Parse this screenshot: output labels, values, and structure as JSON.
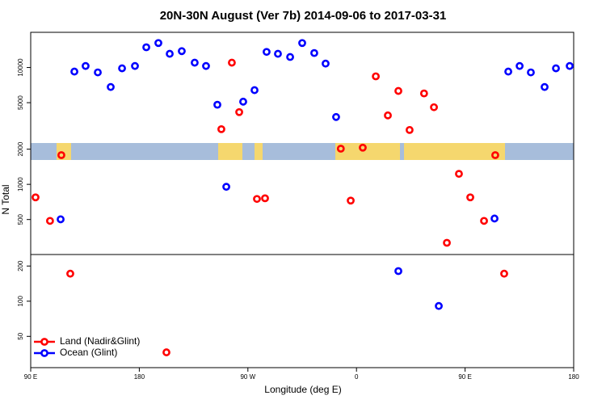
{
  "chart_data": {
    "type": "scatter",
    "title": "20N-30N August (Ver 7b)   2014-09-06 to 2017-03-31",
    "x_label": "Longitude (deg E)",
    "y_label": "N Total",
    "xlim": [
      90,
      540
    ],
    "xticks": [
      {
        "value": 90,
        "label": "90 E"
      },
      180,
      {
        "value": 270,
        "label": "90 W"
      },
      {
        "value": 360,
        "label": "0"
      },
      {
        "value": 450,
        "label": "90 E"
      },
      {
        "value": 540,
        "label": "180"
      }
    ],
    "ylim": [
      27,
      20000
    ],
    "log_y": true,
    "yticks": [
      50,
      100,
      200,
      500,
      1000,
      2000,
      5000,
      10000
    ],
    "legend": "bottom left",
    "series": [
      {
        "name": "Land (Nadir&Glint)",
        "color": "#ff0000",
        "x": [
          94,
          106,
          115.4,
          122.8,
          202.5,
          248,
          256.7,
          262.8,
          277.5,
          284.2,
          347,
          355.2,
          365.2,
          376,
          386,
          394.7,
          404,
          416,
          424.2,
          434.9,
          444.9,
          454.3,
          465.7,
          475,
          482.4
        ],
        "values": [
          774,
          487,
          1778,
          172,
          36.5,
          2966,
          11000,
          4150,
          750,
          760,
          2020,
          726,
          2060,
          8400,
          3890,
          6300,
          2920,
          6000,
          4570,
          316,
          1230,
          774,
          487,
          1778,
          172
        ]
      },
      {
        "name": "Ocean (Glint)",
        "color": "#0000ff",
        "x": [
          114.8,
          126.2,
          135.5,
          145.6,
          156.3,
          165.7,
          176.4,
          185.8,
          195.8,
          205.2,
          215.2,
          225.9,
          235.3,
          244.7,
          252.1,
          266.1,
          275.5,
          285.5,
          294.9,
          305,
          315,
          325,
          334.4,
          343.1,
          394.7,
          428.2,
          474.4,
          485.8,
          495.2,
          504.5,
          515.9,
          525.3,
          536.7
        ],
        "values": [
          502,
          9230,
          10300,
          9080,
          6810,
          9840,
          10300,
          14900,
          16200,
          13100,
          13800,
          11000,
          10300,
          4800,
          953,
          5100,
          6400,
          13600,
          13100,
          12300,
          16200,
          13300,
          10800,
          3770,
          181,
          91,
          510,
          9230,
          10300,
          9080,
          6810,
          9840,
          10300
        ]
      }
    ]
  }
}
